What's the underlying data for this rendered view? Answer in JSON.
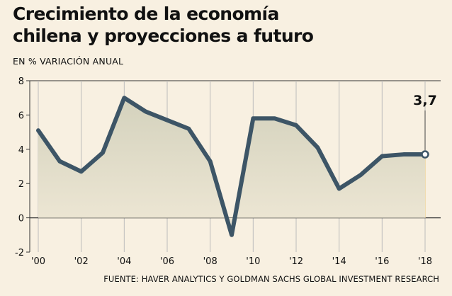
{
  "header": {
    "title": "Crecimiento de la economía\nchilena y proyecciones a futuro",
    "subtitle": "EN % VARIACIÓN ANUAL"
  },
  "footer": {
    "source": "FUENTE: HAVER ANALYTICS Y GOLDMAN SACHS GLOBAL INVESTMENT RESEARCH"
  },
  "colors": {
    "background": "#f8f0e1",
    "line": "#3d5566",
    "area_top": "#d8d6c3",
    "grid": "#bbbbbb",
    "highlight_band": "#f0dcb0"
  },
  "chart_data": {
    "type": "area",
    "title": "Crecimiento de la economía chilena y proyecciones a futuro",
    "ylabel": "EN % VARIACIÓN ANUAL",
    "x": [
      2000,
      2001,
      2002,
      2003,
      2004,
      2005,
      2006,
      2007,
      2008,
      2009,
      2010,
      2011,
      2012,
      2013,
      2014,
      2015,
      2016,
      2017,
      2018
    ],
    "series": [
      {
        "values": [
          5.1,
          3.3,
          2.7,
          3.8,
          7.0,
          6.2,
          5.7,
          5.2,
          3.3,
          -1.0,
          5.8,
          5.8,
          5.4,
          4.1,
          1.7,
          2.5,
          3.6,
          3.7,
          3.7
        ]
      }
    ],
    "xticks": [
      2000,
      2002,
      2004,
      2006,
      2008,
      2010,
      2012,
      2014,
      2016,
      2018
    ],
    "xtick_labels": [
      "'00",
      "'02",
      "'04",
      "'06",
      "'08",
      "'10",
      "'12",
      "'14",
      "'16",
      "'18"
    ],
    "xlim": [
      1999.5,
      2018.5
    ],
    "yticks": [
      -2,
      0,
      2,
      4,
      6,
      8
    ],
    "ytick_labels": [
      "-2",
      "0",
      "2",
      "4",
      "6",
      "8"
    ],
    "ylim": [
      -2,
      8
    ],
    "annotation": {
      "x": 2018,
      "value": 3.7,
      "label": "3,7"
    },
    "grid": "vertical"
  }
}
